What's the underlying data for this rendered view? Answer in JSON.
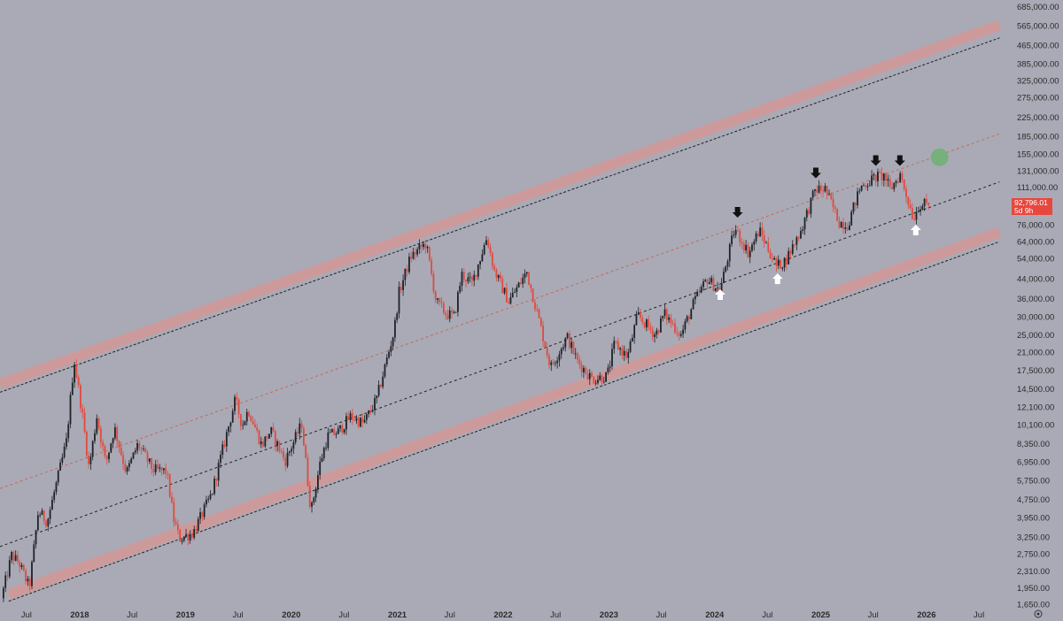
{
  "chart_data": {
    "type": "candlestick",
    "y_scale": "log",
    "y_axis_ticks": [
      "685,000.00",
      "565,000.00",
      "465,000.00",
      "385,000.00",
      "325,000.00",
      "275,000.00",
      "225,000.00",
      "185,000.00",
      "155,000.00",
      "131,000.00",
      "111,000.00",
      "76,000.00",
      "64,000.00",
      "54,000.00",
      "44,000.00",
      "36,000.00",
      "30,000.00",
      "25,000.00",
      "21,000.00",
      "17,500.00",
      "14,500.00",
      "12,100.00",
      "10,100.00",
      "8,350.00",
      "6,950.00",
      "5,750.00",
      "4,750.00",
      "3,950.00",
      "3,250.00",
      "2,750.00",
      "2,310.00",
      "1,950.00",
      "1,650.00"
    ],
    "x_axis_ticks": [
      {
        "label": "Jul",
        "date": "2017-07-01",
        "bold": false
      },
      {
        "label": "2018",
        "date": "2018-01-01",
        "bold": true
      },
      {
        "label": "Jul",
        "date": "2018-07-01",
        "bold": false
      },
      {
        "label": "2019",
        "date": "2019-01-01",
        "bold": true
      },
      {
        "label": "Jul",
        "date": "2019-07-01",
        "bold": false
      },
      {
        "label": "2020",
        "date": "2020-01-01",
        "bold": true
      },
      {
        "label": "Jul",
        "date": "2020-07-01",
        "bold": false
      },
      {
        "label": "2021",
        "date": "2021-01-01",
        "bold": true
      },
      {
        "label": "Jul",
        "date": "2021-07-01",
        "bold": false
      },
      {
        "label": "2022",
        "date": "2022-01-01",
        "bold": true
      },
      {
        "label": "Jul",
        "date": "2022-07-01",
        "bold": false
      },
      {
        "label": "2023",
        "date": "2023-01-01",
        "bold": true
      },
      {
        "label": "Jul",
        "date": "2023-07-01",
        "bold": false
      },
      {
        "label": "2024",
        "date": "2024-01-01",
        "bold": true
      },
      {
        "label": "Jul",
        "date": "2024-07-01",
        "bold": false
      },
      {
        "label": "2025",
        "date": "2025-01-01",
        "bold": true
      },
      {
        "label": "Jul",
        "date": "2025-07-01",
        "bold": false
      },
      {
        "label": "2026",
        "date": "2026-01-01",
        "bold": true
      },
      {
        "label": "Jul",
        "date": "2026-07-01",
        "bold": false
      }
    ],
    "x_range": [
      "2017-04-01",
      "2026-09-15"
    ],
    "y_range": [
      1550,
      720000
    ],
    "current_price": {
      "value": "92,796.01",
      "countdown": "5d 9h"
    },
    "price_path": [
      [
        "2017-04-10",
        1750
      ],
      [
        "2017-05-15",
        2700
      ],
      [
        "2017-06-10",
        2500
      ],
      [
        "2017-07-15",
        1950
      ],
      [
        "2017-08-15",
        4200
      ],
      [
        "2017-09-15",
        3800
      ],
      [
        "2017-10-20",
        5800
      ],
      [
        "2017-11-20",
        8500
      ],
      [
        "2017-12-17",
        19500
      ],
      [
        "2018-01-15",
        11000
      ],
      [
        "2018-02-06",
        6500
      ],
      [
        "2018-03-05",
        11000
      ],
      [
        "2018-04-05",
        6800
      ],
      [
        "2018-05-05",
        9800
      ],
      [
        "2018-06-15",
        6200
      ],
      [
        "2018-07-25",
        8300
      ],
      [
        "2018-09-15",
        6400
      ],
      [
        "2018-11-01",
        6300
      ],
      [
        "2018-11-25",
        3900
      ],
      [
        "2018-12-15",
        3200
      ],
      [
        "2019-02-01",
        3400
      ],
      [
        "2019-04-05",
        5000
      ],
      [
        "2019-05-15",
        8000
      ],
      [
        "2019-06-26",
        13000
      ],
      [
        "2019-07-20",
        10000
      ],
      [
        "2019-08-10",
        11800
      ],
      [
        "2019-09-25",
        8200
      ],
      [
        "2019-10-26",
        9500
      ],
      [
        "2019-12-15",
        7000
      ],
      [
        "2020-02-10",
        10200
      ],
      [
        "2020-03-13",
        4200
      ],
      [
        "2020-04-15",
        7000
      ],
      [
        "2020-05-10",
        9000
      ],
      [
        "2020-06-15",
        9400
      ],
      [
        "2020-07-28",
        11000
      ],
      [
        "2020-09-10",
        10200
      ],
      [
        "2020-10-25",
        13000
      ],
      [
        "2020-11-25",
        18500
      ],
      [
        "2020-12-25",
        26000
      ],
      [
        "2021-01-10",
        38000
      ],
      [
        "2021-02-20",
        55000
      ],
      [
        "2021-04-14",
        63000
      ],
      [
        "2021-05-19",
        35000
      ],
      [
        "2021-06-22",
        31000
      ],
      [
        "2021-07-20",
        30000
      ],
      [
        "2021-08-15",
        46000
      ],
      [
        "2021-09-20",
        42000
      ],
      [
        "2021-11-10",
        67000
      ],
      [
        "2021-12-05",
        48000
      ],
      [
        "2022-01-24",
        35000
      ],
      [
        "2022-03-28",
        47000
      ],
      [
        "2022-05-12",
        28000
      ],
      [
        "2022-06-18",
        18000
      ],
      [
        "2022-08-14",
        24500
      ],
      [
        "2022-09-20",
        19000
      ],
      [
        "2022-11-09",
        16000
      ],
      [
        "2022-12-30",
        16500
      ],
      [
        "2023-01-25",
        23000
      ],
      [
        "2023-03-10",
        20000
      ],
      [
        "2023-04-14",
        30500
      ],
      [
        "2023-06-15",
        25000
      ],
      [
        "2023-07-15",
        31000
      ],
      [
        "2023-09-11",
        25000
      ],
      [
        "2023-10-25",
        34500
      ],
      [
        "2023-12-10",
        44000
      ],
      [
        "2024-01-23",
        39000
      ],
      [
        "2024-03-14",
        73000
      ],
      [
        "2024-05-01",
        57000
      ],
      [
        "2024-06-07",
        72000
      ],
      [
        "2024-08-05",
        50000
      ],
      [
        "2024-09-06",
        53000
      ],
      [
        "2024-10-29",
        72000
      ],
      [
        "2024-12-17",
        108000
      ],
      [
        "2025-01-20",
        109000
      ],
      [
        "2025-03-10",
        78000
      ],
      [
        "2025-04-08",
        76000
      ],
      [
        "2025-05-22",
        111000
      ],
      [
        "2025-07-14",
        123000
      ],
      [
        "2025-08-14",
        124000
      ],
      [
        "2025-09-01",
        108000
      ],
      [
        "2025-10-06",
        126000
      ],
      [
        "2025-11-21",
        81000
      ],
      [
        "2025-12-10",
        93000
      ],
      [
        "2026-01-05",
        92800
      ]
    ],
    "channel": {
      "upper_band": {
        "start": [
          "2017-04-01",
          15200
        ],
        "end": [
          "2026-09-10",
          570000
        ],
        "color": "#d49898"
      },
      "upper_band_dashed": {
        "start": [
          "2017-04-01",
          14000
        ],
        "end": [
          "2026-09-10",
          500000
        ]
      },
      "mid_red_dashed": {
        "start": [
          "2017-04-01",
          5300
        ],
        "end": [
          "2026-09-10",
          190000
        ],
        "color": "#c66a55"
      },
      "mid_black_dashed": {
        "start": [
          "2017-04-01",
          2950
        ],
        "end": [
          "2026-09-10",
          117000
        ]
      },
      "lower_band": {
        "start": [
          "2017-05-01",
          1820
        ],
        "end": [
          "2026-09-10",
          70500
        ],
        "color": "#d49898"
      },
      "lower_band_dashed": {
        "start": [
          "2017-05-01",
          1700
        ],
        "end": [
          "2026-09-10",
          64000
        ]
      }
    },
    "annotations": {
      "down_arrows": [
        [
          "2024-03-20",
          86000
        ],
        [
          "2024-12-15",
          128000
        ],
        [
          "2025-07-10",
          145000
        ],
        [
          "2025-10-01",
          145000
        ]
      ],
      "up_arrows": [
        [
          "2024-01-20",
          37500
        ],
        [
          "2024-08-05",
          44000
        ],
        [
          "2025-11-25",
          72000
        ]
      ],
      "target_circle": [
        [
          "2026-02-15",
          150000
        ]
      ]
    },
    "colors": {
      "background": "#a9aab6",
      "up_candle": "#1f2227",
      "down_candle": "#e04a3d",
      "band": "#d49898",
      "target": "#6fb173",
      "arrow_up": "#ffffff",
      "arrow_down": "#111111"
    }
  }
}
